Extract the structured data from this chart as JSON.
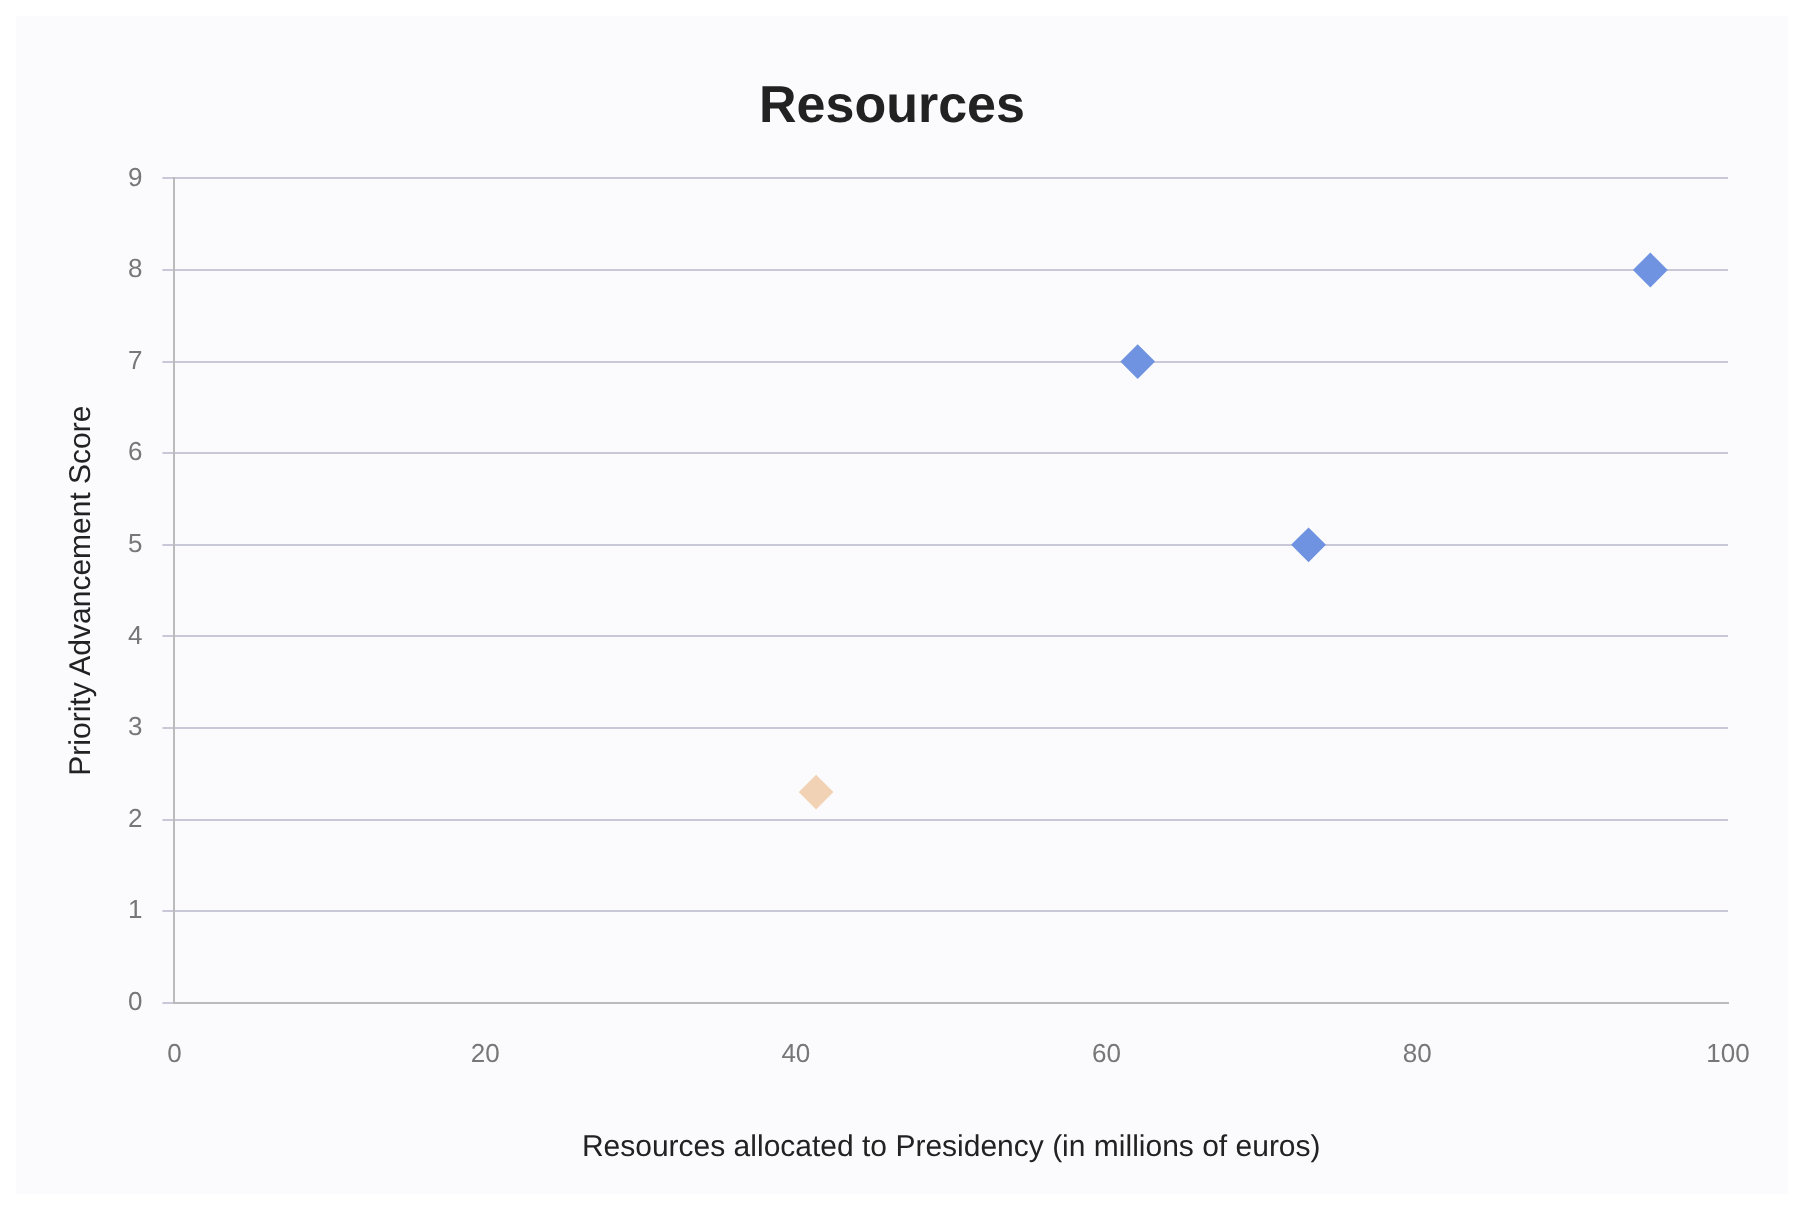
{
  "chart_data": {
    "type": "scatter",
    "title": "Resources",
    "xlabel": "Resources allocated to Presidency (in millions of euros)",
    "ylabel": "Priority Advancement Score",
    "series": [
      {
        "color": "#6f93e0",
        "x": [
          62,
          73,
          95
        ],
        "values": [
          7,
          5,
          8
        ]
      },
      {
        "color": "#f2d2b4",
        "x": [
          41.3
        ],
        "values": [
          2.3
        ]
      }
    ],
    "xlim": [
      0,
      100
    ],
    "xticks": [
      0,
      20,
      40,
      60,
      80,
      100
    ],
    "ylim": [
      0,
      9
    ],
    "yticks": [
      0,
      1,
      2,
      3,
      4,
      5,
      6,
      7,
      8,
      9
    ],
    "grid": "y",
    "marker": "diamond",
    "legend": false
  }
}
